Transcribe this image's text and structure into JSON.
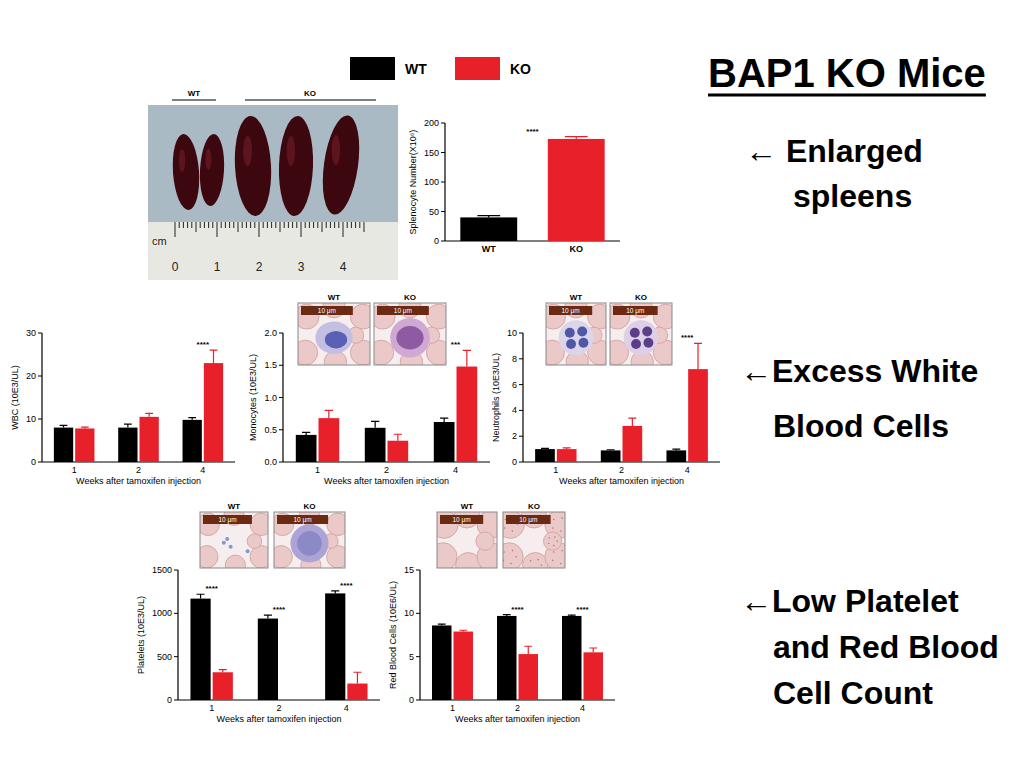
{
  "slide": {
    "title": "BAP1 KO Mice",
    "photo": {
      "labels": [
        "WT",
        "KO"
      ],
      "unit": "cm",
      "ruler": [
        0,
        1,
        2,
        3,
        4
      ]
    },
    "callouts": [
      [
        "← Enlarged",
        "spleens"
      ],
      [
        "←Excess White",
        "Blood Cells"
      ],
      [
        "←Low Platelet",
        "and Red Blood",
        "Cell Count"
      ]
    ]
  },
  "chart_data": [
    {
      "type": "bar",
      "y_label": "Splenocyte Number(X10⁶)",
      "categories": [
        "WT",
        "KO"
      ],
      "values": [
        40,
        173
      ],
      "errors": [
        3,
        4
      ],
      "colors": [
        "#000000",
        "#e8202a"
      ],
      "significance": "****",
      "ylim": [
        0,
        200
      ],
      "yticks": [
        0,
        50,
        100,
        150,
        200
      ]
    },
    {
      "type": "bar",
      "y_label": "WBC (10E3/UL)",
      "x_label": "Weeks after tamoxifen injection",
      "categories": [
        "1",
        "2",
        "4"
      ],
      "series": [
        {
          "name": "WT",
          "color": "#000000",
          "values": [
            8,
            8,
            9.8
          ],
          "errors": [
            0.5,
            0.8,
            0.5
          ]
        },
        {
          "name": "KO",
          "color": "#e8202a",
          "values": [
            7.8,
            10.5,
            23
          ],
          "errors": [
            0.3,
            0.8,
            3
          ]
        }
      ],
      "significance": [
        null,
        null,
        "****"
      ],
      "ylim": [
        0,
        30
      ],
      "yticks": [
        0,
        10,
        20,
        30
      ]
    },
    {
      "type": "bar",
      "y_label": "Monocytes (10E3/UL)",
      "x_label": "Weeks after tamoxifen injection",
      "categories": [
        "1",
        "2",
        "4"
      ],
      "series": [
        {
          "name": "WT",
          "color": "#000000",
          "values": [
            0.42,
            0.53,
            0.62
          ],
          "errors": [
            0.04,
            0.1,
            0.06
          ]
        },
        {
          "name": "KO",
          "color": "#e8202a",
          "values": [
            0.68,
            0.33,
            1.48
          ],
          "errors": [
            0.12,
            0.1,
            0.25
          ]
        }
      ],
      "significance": [
        null,
        null,
        "***"
      ],
      "ylim": [
        0,
        2
      ],
      "yticks": [
        {
          "value": 0,
          "label": "0.0"
        },
        {
          "value": 0.5,
          "label": "0.5"
        },
        {
          "value": 1,
          "label": "1.0"
        },
        {
          "value": 1.5,
          "label": "1.5"
        },
        {
          "value": 2,
          "label": "2.0"
        }
      ],
      "images": {
        "labels": [
          "WT",
          "KO"
        ],
        "scale": "10 μm"
      }
    },
    {
      "type": "bar",
      "y_label": "Neutrophils (10E3/UL)",
      "x_label": "Weeks after tamoxifen injection",
      "categories": [
        "1",
        "2",
        "4"
      ],
      "series": [
        {
          "name": "WT",
          "color": "#000000",
          "values": [
            1.0,
            0.9,
            0.9
          ],
          "errors": [
            0.05,
            0.05,
            0.1
          ]
        },
        {
          "name": "KO",
          "color": "#e8202a",
          "values": [
            1.0,
            2.8,
            7.2
          ],
          "errors": [
            0.1,
            0.6,
            2.0
          ]
        }
      ],
      "significance": [
        null,
        null,
        "****"
      ],
      "ylim": [
        0,
        10
      ],
      "yticks": [
        0,
        2,
        4,
        6,
        8,
        10
      ],
      "images": {
        "labels": [
          "WT",
          "KO"
        ],
        "scale": "10 μm"
      }
    },
    {
      "type": "bar",
      "y_label": "Platelets (10E3/UL)",
      "x_label": "Weeks after tamoxifen injection",
      "categories": [
        "1",
        "2",
        "4"
      ],
      "series": [
        {
          "name": "WT",
          "color": "#000000",
          "values": [
            1170,
            940,
            1230
          ],
          "errors": [
            50,
            40,
            30
          ]
        },
        {
          "name": "KO",
          "color": "#e8202a",
          "values": [
            320,
            null,
            190
          ],
          "errors": [
            30,
            null,
            130
          ]
        }
      ],
      "significance": [
        "****",
        "****",
        "****"
      ],
      "ylim": [
        0,
        1500
      ],
      "yticks": [
        0,
        500,
        1000,
        1500
      ],
      "images": {
        "labels": [
          "WT",
          "KO"
        ],
        "scale": "10 μm"
      }
    },
    {
      "type": "bar",
      "y_label": "Red Blood Cells (10E6/UL)",
      "x_label": "Weeks after tamoxifen injection",
      "categories": [
        "1",
        "2",
        "4"
      ],
      "series": [
        {
          "name": "WT",
          "color": "#000000",
          "values": [
            8.6,
            9.7,
            9.7
          ],
          "errors": [
            0.15,
            0.15,
            0.1
          ]
        },
        {
          "name": "KO",
          "color": "#e8202a",
          "values": [
            7.9,
            5.3,
            5.5
          ],
          "errors": [
            0.15,
            0.9,
            0.5
          ]
        }
      ],
      "significance": [
        null,
        "****",
        "****"
      ],
      "ylim": [
        0,
        15
      ],
      "yticks": [
        0,
        5,
        10,
        15
      ],
      "images": {
        "labels": [
          "WT",
          "KO"
        ],
        "scale": "10 μm"
      }
    }
  ]
}
